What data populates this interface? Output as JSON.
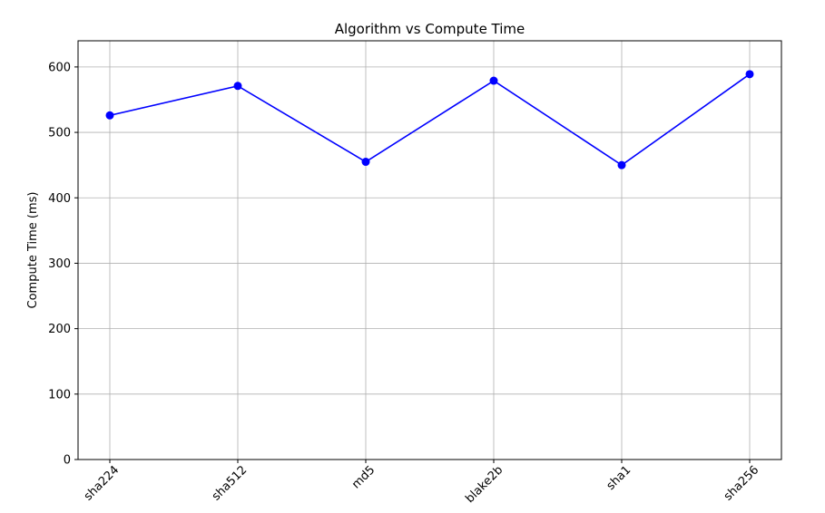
{
  "chart_data": {
    "type": "line",
    "title": "Algorithm vs Compute Time",
    "xlabel": "",
    "ylabel": "Compute Time (ms)",
    "categories": [
      "sha224",
      "sha512",
      "md5",
      "blake2b",
      "sha1",
      "sha256"
    ],
    "series": [
      {
        "values": [
          526,
          571,
          455,
          579,
          450,
          589
        ],
        "color": "#0000ff",
        "marker": "circle"
      }
    ],
    "ylim": [
      0,
      640
    ],
    "yticks": [
      0,
      100,
      200,
      300,
      400,
      500,
      600
    ],
    "grid": true,
    "x_tick_rotation": 45
  }
}
